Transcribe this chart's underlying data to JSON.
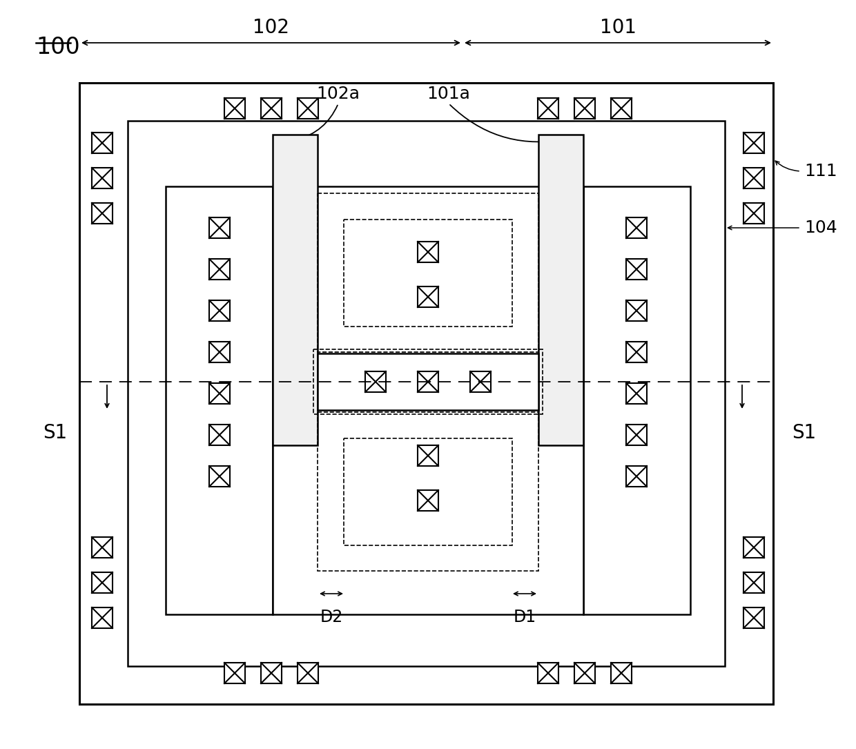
{
  "bg_color": "#ffffff",
  "fig_label": "100",
  "label_111": "111",
  "label_104": "104",
  "label_101": "101",
  "label_102": "102",
  "label_101a": "101a",
  "label_102a": "102a",
  "label_S1": "S1",
  "label_D1": "D1",
  "label_D2": "D2",
  "lw_outer": 2.2,
  "lw_inner": 1.8,
  "lw_thin": 1.2,
  "xbox_size": 30
}
